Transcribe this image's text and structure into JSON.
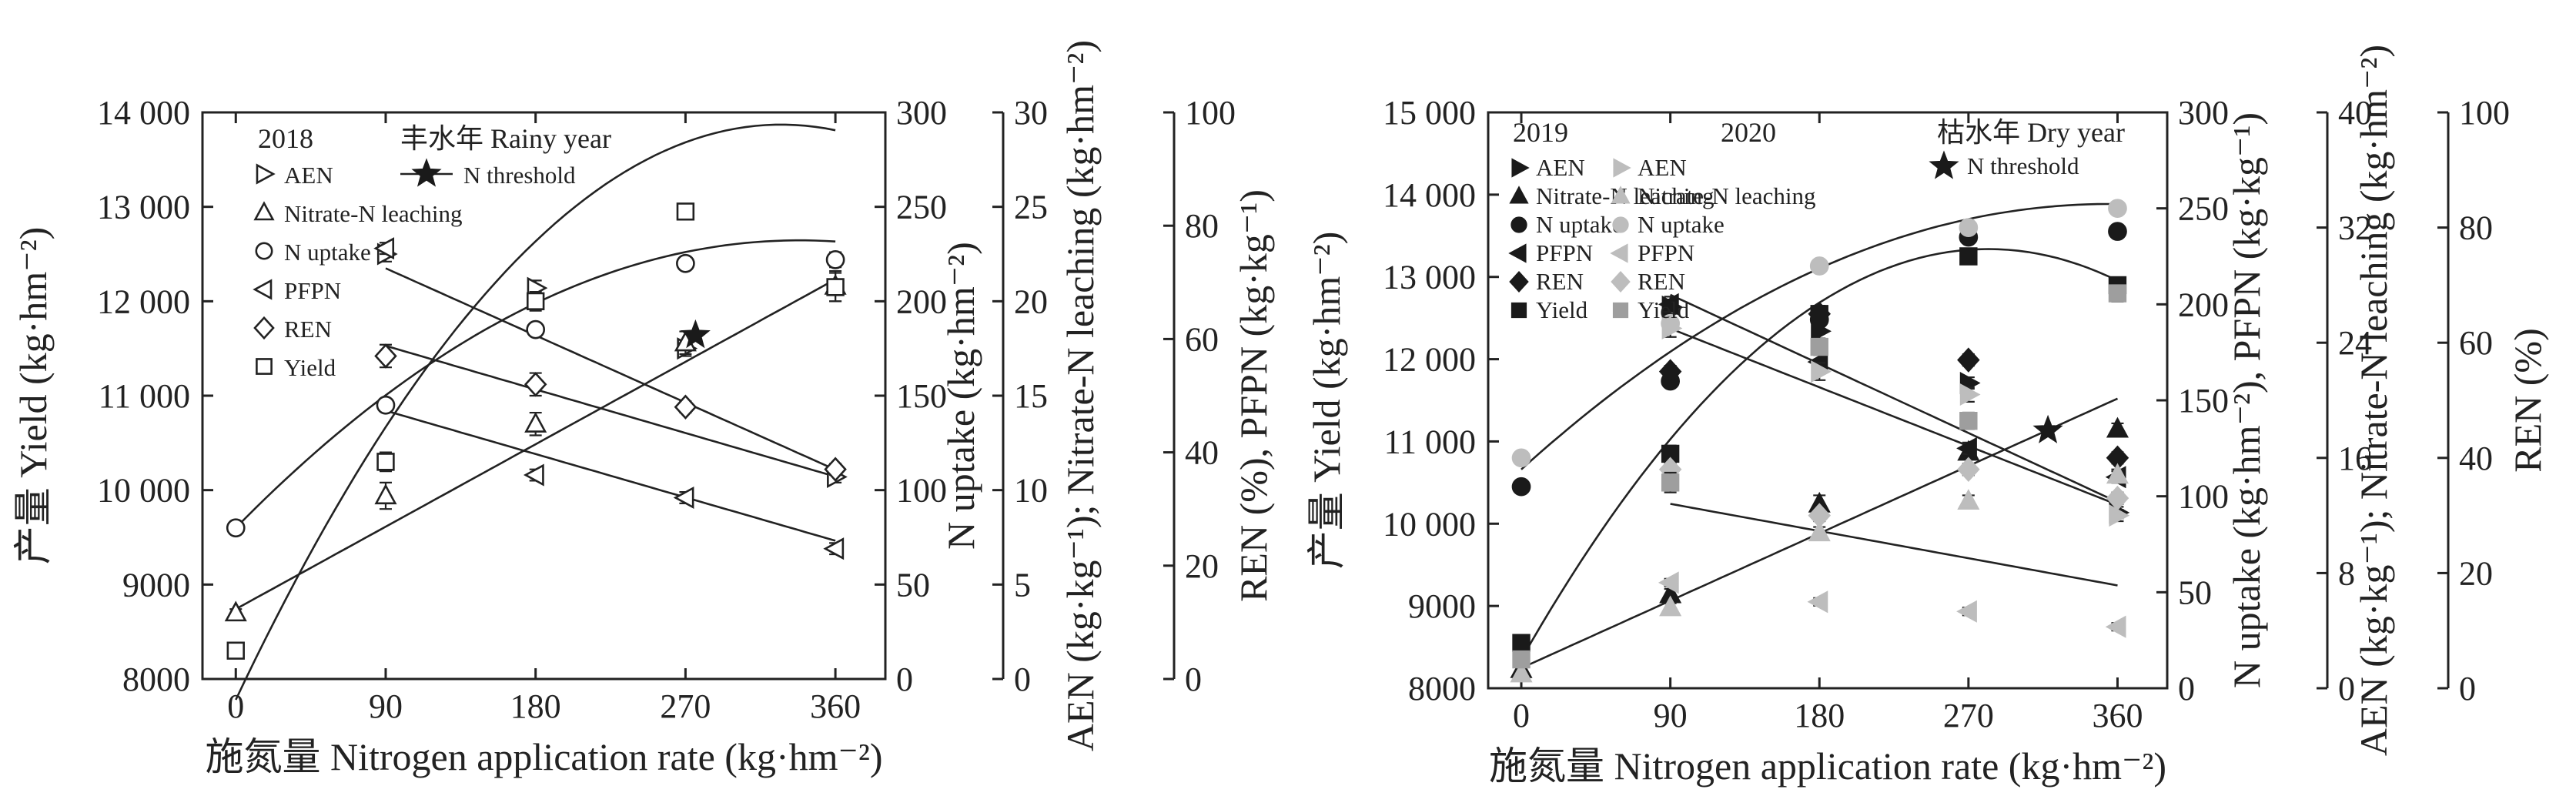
{
  "chart_data": [
    {
      "type": "scatter",
      "panel_title": "丰水年 Rainy year",
      "legend_years": [
        "2018"
      ],
      "xlabel": "施氮量 Nitrogen application rate (kg·hm⁻²)",
      "x": [
        0,
        90,
        180,
        270,
        360
      ],
      "xlim": [
        -20,
        390
      ],
      "legend_placement": "top-left",
      "grid": false,
      "axes": [
        {
          "id": "yield",
          "label": "产量 Yield (kg·hm⁻²)",
          "side": "left",
          "lim": [
            8000,
            14000
          ],
          "ticks": [
            8000,
            9000,
            10000,
            11000,
            12000,
            13000,
            14000
          ],
          "tick_labels": [
            "8000",
            "9000",
            "10 000",
            "11 000",
            "12 000",
            "13 000",
            "14 000"
          ]
        },
        {
          "id": "uptake",
          "label": "N uptake (kg·hm⁻²)",
          "side": "right-1",
          "lim": [
            0,
            300
          ],
          "ticks": [
            0,
            50,
            100,
            150,
            200,
            250,
            300
          ],
          "tick_labels": [
            "0",
            "50",
            "100",
            "150",
            "200",
            "250",
            "300"
          ]
        },
        {
          "id": "leach",
          "label": "AEN (kg·kg⁻¹); Nitrate-N leaching (kg·hm⁻²)",
          "side": "right-2",
          "lim": [
            0,
            30
          ],
          "ticks": [
            0,
            5,
            10,
            15,
            20,
            25,
            30
          ],
          "tick_labels": [
            "0",
            "5",
            "10",
            "15",
            "20",
            "25",
            "30"
          ]
        },
        {
          "id": "pct",
          "label": "REN (%), PFPN (kg·kg⁻¹)",
          "side": "right-3",
          "lim": [
            0,
            100
          ],
          "ticks": [
            0,
            20,
            40,
            60,
            80,
            100
          ],
          "tick_labels": [
            "0",
            "20",
            "40",
            "60",
            "80",
            "100"
          ]
        }
      ],
      "series": [
        {
          "name": "AEN",
          "marker": "tri-right",
          "filled": false,
          "axis": "leach",
          "x": [
            90,
            180,
            270,
            360
          ],
          "values": [
            22.5,
            20.7,
            17.5,
            10.7
          ],
          "err": [
            0.4,
            0.4,
            0.4,
            0.3
          ]
        },
        {
          "name": "Nitrate-N leaching",
          "marker": "tri-up",
          "filled": false,
          "axis": "leach",
          "x": [
            0,
            90,
            180,
            270,
            360
          ],
          "values": [
            3.5,
            9.7,
            13.5,
            17.8,
            20.8
          ],
          "err": [
            0.2,
            0.7,
            0.6,
            0.6,
            0.8
          ]
        },
        {
          "name": "N uptake",
          "marker": "circle",
          "filled": false,
          "axis": "uptake",
          "x": [
            0,
            90,
            180,
            270,
            360
          ],
          "values": [
            80,
            145,
            185,
            220,
            222
          ],
          "err": [
            2,
            3,
            3,
            3,
            4
          ]
        },
        {
          "name": "PFPN",
          "marker": "tri-left",
          "filled": false,
          "axis": "pct",
          "x": [
            90,
            180,
            270,
            360
          ],
          "values": [
            76,
            36,
            32,
            23
          ],
          "err": [
            1,
            1,
            1,
            1
          ]
        },
        {
          "name": "REN",
          "marker": "diamond",
          "filled": false,
          "axis": "pct",
          "x": [
            90,
            180,
            270,
            360
          ],
          "values": [
            57,
            52,
            48,
            37
          ],
          "err": [
            2,
            2,
            1,
            1
          ]
        },
        {
          "name": "Yield",
          "marker": "square",
          "filled": false,
          "axis": "yield",
          "x": [
            0,
            90,
            180,
            270,
            360
          ],
          "values": [
            8300,
            10300,
            12000,
            12950,
            12150
          ],
          "err": [
            50,
            100,
            100,
            60,
            150
          ]
        },
        {
          "name": "N threshold",
          "marker": "star",
          "filled": true,
          "axis": "leach",
          "x": [
            276
          ],
          "values": [
            18.2
          ],
          "err": [
            0
          ]
        }
      ],
      "fits": [
        {
          "axis": "uptake",
          "range": [
            0,
            360
          ],
          "type": "quadratic",
          "coef": [
            80,
            0.9,
            -0.00133
          ]
        },
        {
          "axis": "yield",
          "range": [
            0,
            360
          ],
          "type": "quadratic",
          "coef": [
            7780,
            37.2,
            -0.0568
          ]
        },
        {
          "axis": "leach",
          "range": [
            0,
            360
          ],
          "type": "linear",
          "coef": [
            3.7,
            0.0485
          ]
        },
        {
          "axis": "leach",
          "range": [
            90,
            360
          ],
          "type": "linear",
          "coef": [
            25.3,
            -0.0395
          ]
        },
        {
          "axis": "pct",
          "range": [
            90,
            360
          ],
          "type": "linear",
          "coef": [
            66.5,
            -0.0855
          ]
        },
        {
          "axis": "pct",
          "range": [
            90,
            360
          ],
          "type": "linear",
          "coef": [
            55,
            -0.085
          ]
        }
      ]
    },
    {
      "type": "scatter",
      "panel_title": "枯水年 Dry year",
      "legend_years": [
        "2019",
        "2020"
      ],
      "xlabel": "施氮量 Nitrogen application rate (kg·hm⁻²)",
      "x": [
        0,
        90,
        180,
        270,
        360
      ],
      "xlim": [
        -20,
        390
      ],
      "legend_placement": "top-left",
      "grid": false,
      "axes": [
        {
          "id": "yield",
          "label": "产量 Yield (kg·hm⁻²)",
          "side": "left",
          "lim": [
            8000,
            15000
          ],
          "ticks": [
            8000,
            9000,
            10000,
            11000,
            12000,
            13000,
            14000,
            15000
          ],
          "tick_labels": [
            "8000",
            "9000",
            "10 000",
            "11 000",
            "12 000",
            "13 000",
            "14 000",
            "15 000"
          ]
        },
        {
          "id": "uptake",
          "label": "N uptake (kg·hm⁻²), PFPN (kg·kg⁻¹)",
          "side": "right-1",
          "lim": [
            0,
            300
          ],
          "ticks": [
            0,
            50,
            100,
            150,
            200,
            250,
            300
          ],
          "tick_labels": [
            "0",
            "50",
            "100",
            "150",
            "200",
            "250",
            "300"
          ]
        },
        {
          "id": "leach",
          "label": "AEN (kg·kg⁻¹); Nitrate-N leaching (kg·hm⁻²)",
          "side": "right-2",
          "lim": [
            0,
            40
          ],
          "ticks": [
            0,
            8,
            16,
            24,
            32,
            40
          ],
          "tick_labels": [
            "0",
            "8",
            "16",
            "24",
            "32",
            "40"
          ]
        },
        {
          "id": "pct",
          "label": "REN (%)",
          "side": "right-3",
          "lim": [
            0,
            100
          ],
          "ticks": [
            0,
            20,
            40,
            60,
            80,
            100
          ],
          "tick_labels": [
            "0",
            "20",
            "40",
            "60",
            "80",
            "100"
          ]
        }
      ],
      "series": [
        {
          "name": "AEN",
          "year": "2019",
          "marker": "tri-right",
          "filled": true,
          "color": "#1a1a1a",
          "axis": "leach",
          "x": [
            90,
            180,
            270,
            360
          ],
          "values": [
            26.5,
            24.8,
            21.2,
            12.2
          ],
          "err": [
            0.5,
            0.5,
            0.4,
            0.4
          ]
        },
        {
          "name": "Nitrate-N leaching",
          "year": "2019",
          "marker": "tri-up",
          "filled": true,
          "color": "#1a1a1a",
          "axis": "leach",
          "x": [
            0,
            90,
            180,
            270,
            360
          ],
          "values": [
            1.3,
            6.5,
            12.8,
            16.4,
            18.0
          ],
          "err": [
            0.2,
            0.4,
            0.6,
            0.5,
            0.4
          ]
        },
        {
          "name": "N uptake",
          "year": "2019",
          "marker": "circle",
          "filled": true,
          "color": "#1a1a1a",
          "axis": "uptake",
          "x": [
            0,
            90,
            180,
            270,
            360
          ],
          "values": [
            105,
            160,
            192,
            235,
            238
          ],
          "err": [
            2,
            2,
            3,
            3,
            3
          ]
        },
        {
          "name": "PFPN",
          "year": "2019",
          "marker": "tri-left",
          "filled": true,
          "color": "#1a1a1a",
          "axis": "uptake",
          "x": [
            90,
            180,
            270,
            360
          ],
          "values": [
            200,
            170,
            125,
            110
          ],
          "err": [
            4,
            4,
            3,
            3
          ]
        },
        {
          "name": "REN",
          "year": "2019",
          "marker": "diamond",
          "filled": true,
          "color": "#1a1a1a",
          "axis": "pct",
          "x": [
            90,
            180,
            270,
            360
          ],
          "values": [
            55,
            65,
            57,
            40
          ],
          "err": [
            1,
            1,
            1,
            1
          ]
        },
        {
          "name": "Yield",
          "year": "2019",
          "marker": "square",
          "filled": true,
          "color": "#1a1a1a",
          "axis": "yield",
          "x": [
            0,
            90,
            180,
            270,
            360
          ],
          "values": [
            8550,
            10850,
            12550,
            13250,
            12900
          ],
          "err": [
            60,
            100,
            100,
            80,
            80
          ]
        },
        {
          "name": "AEN",
          "year": "2020",
          "marker": "tri-right",
          "filled": true,
          "color": "#bdbdbd",
          "axis": "leach",
          "x": [
            90,
            180,
            270,
            360
          ],
          "values": [
            25.0,
            22.0,
            20.4,
            12.0
          ],
          "err": [
            0.6,
            0.6,
            0.5,
            0.4
          ]
        },
        {
          "name": "Nitrate-N leaching",
          "year": "2020",
          "marker": "tri-up",
          "filled": true,
          "color": "#bdbdbd",
          "axis": "leach",
          "x": [
            0,
            90,
            180,
            270,
            360
          ],
          "values": [
            1.0,
            5.6,
            10.8,
            13.0,
            14.8
          ],
          "err": [
            0.2,
            0.3,
            0.4,
            0.4,
            0.4
          ]
        },
        {
          "name": "N uptake",
          "year": "2020",
          "marker": "circle",
          "filled": true,
          "color": "#bdbdbd",
          "axis": "uptake",
          "x": [
            0,
            90,
            180,
            270,
            360
          ],
          "values": [
            120,
            190,
            220,
            240,
            250
          ],
          "err": [
            2,
            3,
            3,
            3,
            3
          ]
        },
        {
          "name": "PFPN",
          "year": "2020",
          "marker": "tri-left",
          "filled": true,
          "color": "#bdbdbd",
          "axis": "uptake",
          "x": [
            90,
            180,
            270,
            360
          ],
          "values": [
            55,
            45,
            40,
            32
          ],
          "err": [
            2,
            2,
            2,
            2
          ]
        },
        {
          "name": "REN",
          "year": "2020",
          "marker": "diamond",
          "filled": true,
          "color": "#bdbdbd",
          "axis": "pct",
          "x": [
            90,
            180,
            270,
            360
          ],
          "values": [
            38,
            30,
            38,
            33
          ],
          "err": [
            1,
            1,
            1,
            1
          ]
        },
        {
          "name": "Yield",
          "year": "2020",
          "marker": "square",
          "filled": true,
          "color": "#9e9e9e",
          "axis": "yield",
          "x": [
            0,
            90,
            180,
            270,
            360
          ],
          "values": [
            8350,
            10500,
            12150,
            11250,
            12800
          ],
          "err": [
            60,
            120,
            100,
            100,
            100
          ]
        },
        {
          "name": "N threshold",
          "marker": "star",
          "filled": true,
          "color": "#1a1a1a",
          "axis": "leach",
          "x": [
            318
          ],
          "values": [
            17.9
          ],
          "err": [
            0
          ]
        }
      ],
      "fits": [
        {
          "axis": "uptake",
          "range": [
            0,
            360
          ],
          "type": "quadratic",
          "coef": [
            114,
            0.78,
            -0.0011
          ]
        },
        {
          "axis": "yield",
          "range": [
            0,
            360
          ],
          "type": "quadratic",
          "coef": [
            8350,
            35.4,
            -0.0628
          ]
        },
        {
          "axis": "leach",
          "range": [
            0,
            360
          ],
          "type": "linear",
          "coef": [
            1.4,
            0.052
          ]
        },
        {
          "axis": "leach",
          "range": [
            90,
            360
          ],
          "type": "linear",
          "coef": [
            14.7,
            -0.021
          ]
        },
        {
          "axis": "uptake",
          "range": [
            90,
            360
          ],
          "type": "linear",
          "coef": [
            241,
            -0.4
          ]
        },
        {
          "axis": "uptake",
          "range": [
            90,
            360
          ],
          "type": "linear",
          "coef": [
            218,
            -0.34
          ]
        }
      ]
    }
  ]
}
